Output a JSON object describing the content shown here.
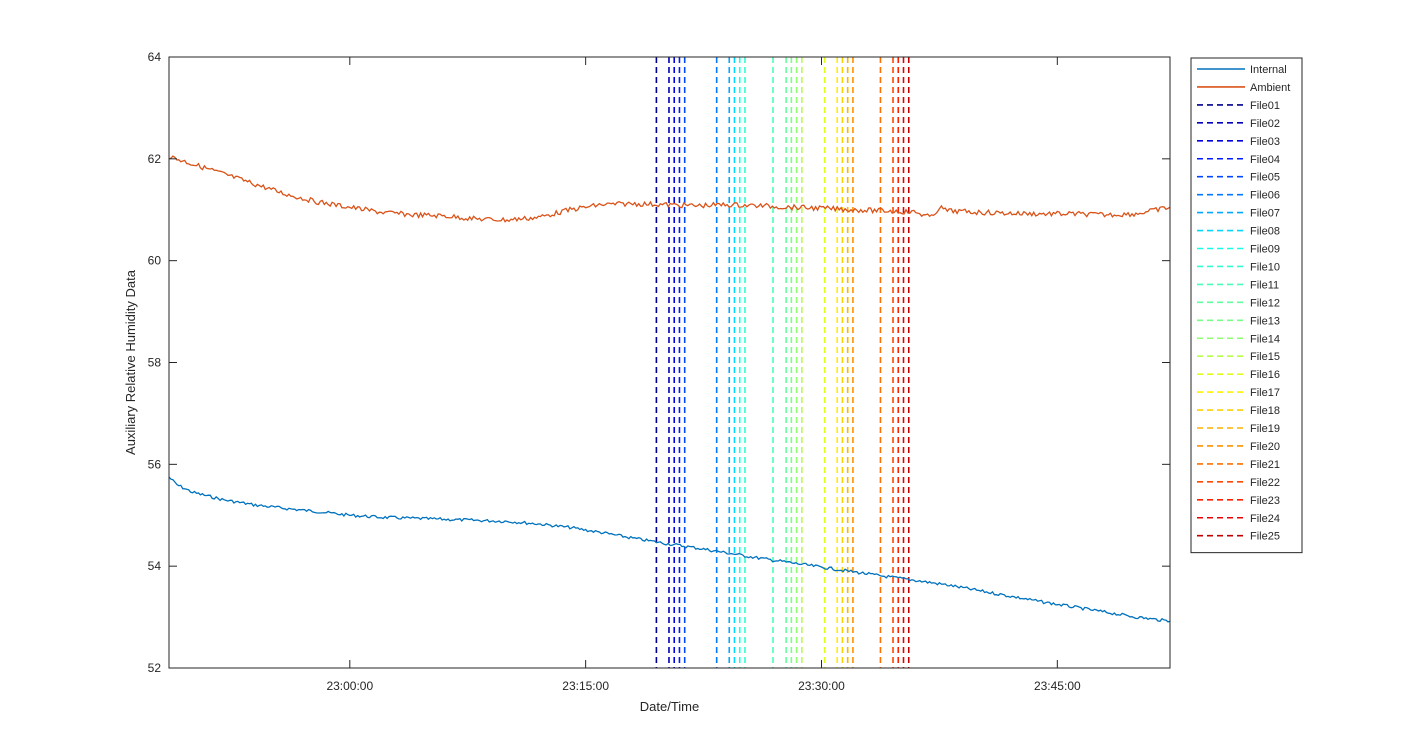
{
  "chart_data": {
    "type": "line",
    "title": "",
    "xlabel": "Date/Time",
    "ylabel": "Auxiliary Relative Humidity Data",
    "ylim": [
      52,
      64
    ],
    "xlim": [
      "22:48:30",
      "23:52:10"
    ],
    "x_ticks": [
      "23:00:00",
      "23:15:00",
      "23:30:00",
      "23:45:00"
    ],
    "y_ticks": [
      "52",
      "54",
      "56",
      "58",
      "60",
      "62",
      "64"
    ],
    "grid": false,
    "legend_position": "outside-right",
    "series": [
      {
        "name": "Internal",
        "color": "#0072BD",
        "style": "solid",
        "points": [
          [
            "22:48:30",
            55.75
          ],
          [
            "22:49:00",
            55.6
          ],
          [
            "22:50:00",
            55.45
          ],
          [
            "22:52:00",
            55.3
          ],
          [
            "22:54:00",
            55.2
          ],
          [
            "22:56:00",
            55.13
          ],
          [
            "22:58:00",
            55.07
          ],
          [
            "23:00:00",
            55.0
          ],
          [
            "23:02:00",
            54.96
          ],
          [
            "23:05:00",
            54.93
          ],
          [
            "23:08:00",
            54.9
          ],
          [
            "23:10:00",
            54.88
          ],
          [
            "23:12:00",
            54.83
          ],
          [
            "23:14:00",
            54.76
          ],
          [
            "23:16:00",
            54.66
          ],
          [
            "23:18:00",
            54.55
          ],
          [
            "23:20:00",
            54.45
          ],
          [
            "23:22:00",
            54.36
          ],
          [
            "23:24:00",
            54.26
          ],
          [
            "23:26:00",
            54.16
          ],
          [
            "23:28:00",
            54.07
          ],
          [
            "23:30:00",
            53.98
          ],
          [
            "23:32:00",
            53.89
          ],
          [
            "23:34:00",
            53.8
          ],
          [
            "23:36:00",
            53.72
          ],
          [
            "23:38:00",
            53.63
          ],
          [
            "23:40:00",
            53.52
          ],
          [
            "23:42:00",
            53.41
          ],
          [
            "23:44:00",
            53.3
          ],
          [
            "23:46:00",
            53.2
          ],
          [
            "23:48:00",
            53.1
          ],
          [
            "23:50:00",
            53.0
          ],
          [
            "23:52:10",
            52.92
          ]
        ]
      },
      {
        "name": "Ambient",
        "color": "#D95319",
        "style": "solid",
        "points": [
          [
            "22:48:30",
            62.05
          ],
          [
            "22:50:00",
            61.9
          ],
          [
            "22:52:00",
            61.7
          ],
          [
            "22:54:00",
            61.5
          ],
          [
            "22:56:00",
            61.3
          ],
          [
            "22:58:00",
            61.15
          ],
          [
            "23:00:00",
            61.05
          ],
          [
            "23:02:00",
            60.95
          ],
          [
            "23:04:00",
            60.9
          ],
          [
            "23:06:00",
            60.88
          ],
          [
            "23:08:00",
            60.82
          ],
          [
            "23:10:00",
            60.8
          ],
          [
            "23:12:00",
            60.85
          ],
          [
            "23:14:00",
            61.0
          ],
          [
            "23:16:00",
            61.1
          ],
          [
            "23:18:00",
            61.12
          ],
          [
            "23:20:00",
            61.1
          ],
          [
            "23:22:00",
            61.08
          ],
          [
            "23:24:00",
            61.1
          ],
          [
            "23:26:00",
            61.08
          ],
          [
            "23:28:00",
            61.05
          ],
          [
            "23:30:00",
            61.03
          ],
          [
            "23:32:00",
            61.0
          ],
          [
            "23:34:00",
            60.98
          ],
          [
            "23:36:00",
            60.95
          ],
          [
            "23:37:00",
            60.85
          ],
          [
            "23:37:30",
            61.05
          ],
          [
            "23:38:00",
            60.98
          ],
          [
            "23:40:00",
            60.95
          ],
          [
            "23:42:00",
            60.93
          ],
          [
            "23:44:00",
            60.92
          ],
          [
            "23:46:00",
            60.92
          ],
          [
            "23:48:00",
            60.9
          ],
          [
            "23:50:00",
            60.92
          ],
          [
            "23:52:10",
            61.05
          ]
        ]
      }
    ],
    "markers": [
      {
        "name": "File01",
        "time": "23:19:30",
        "color": "#00008F"
      },
      {
        "name": "File02",
        "time": "23:20:18",
        "color": "#0000B8"
      },
      {
        "name": "File03",
        "time": "23:20:38",
        "color": "#0000E0"
      },
      {
        "name": "File04",
        "time": "23:20:58",
        "color": "#0018FF"
      },
      {
        "name": "File05",
        "time": "23:21:18",
        "color": "#0048FF"
      },
      {
        "name": "File06",
        "time": "23:23:20",
        "color": "#0078FF"
      },
      {
        "name": "File07",
        "time": "23:24:08",
        "color": "#00A8FF"
      },
      {
        "name": "File08",
        "time": "23:24:28",
        "color": "#00D8FF"
      },
      {
        "name": "File09",
        "time": "23:24:48",
        "color": "#18FFE8"
      },
      {
        "name": "File10",
        "time": "23:25:08",
        "color": "#30FFD0"
      },
      {
        "name": "File11",
        "time": "23:26:55",
        "color": "#48FFB8"
      },
      {
        "name": "File12",
        "time": "23:27:45",
        "color": "#60FFA0"
      },
      {
        "name": "File13",
        "time": "23:28:05",
        "color": "#78FF88"
      },
      {
        "name": "File14",
        "time": "23:28:25",
        "color": "#90FF70"
      },
      {
        "name": "File15",
        "time": "23:28:45",
        "color": "#B8FF48"
      },
      {
        "name": "File16",
        "time": "23:30:12",
        "color": "#E0FF18"
      },
      {
        "name": "File17",
        "time": "23:31:00",
        "color": "#FFF000"
      },
      {
        "name": "File18",
        "time": "23:31:20",
        "color": "#FFD000"
      },
      {
        "name": "File19",
        "time": "23:31:40",
        "color": "#FFB000"
      },
      {
        "name": "File20",
        "time": "23:32:00",
        "color": "#FF9000"
      },
      {
        "name": "File21",
        "time": "23:33:45",
        "color": "#FF7000"
      },
      {
        "name": "File22",
        "time": "23:34:33",
        "color": "#FF4800"
      },
      {
        "name": "File23",
        "time": "23:34:53",
        "color": "#FF2000"
      },
      {
        "name": "File24",
        "time": "23:35:13",
        "color": "#E80000"
      },
      {
        "name": "File25",
        "time": "23:35:33",
        "color": "#C00000"
      }
    ]
  }
}
